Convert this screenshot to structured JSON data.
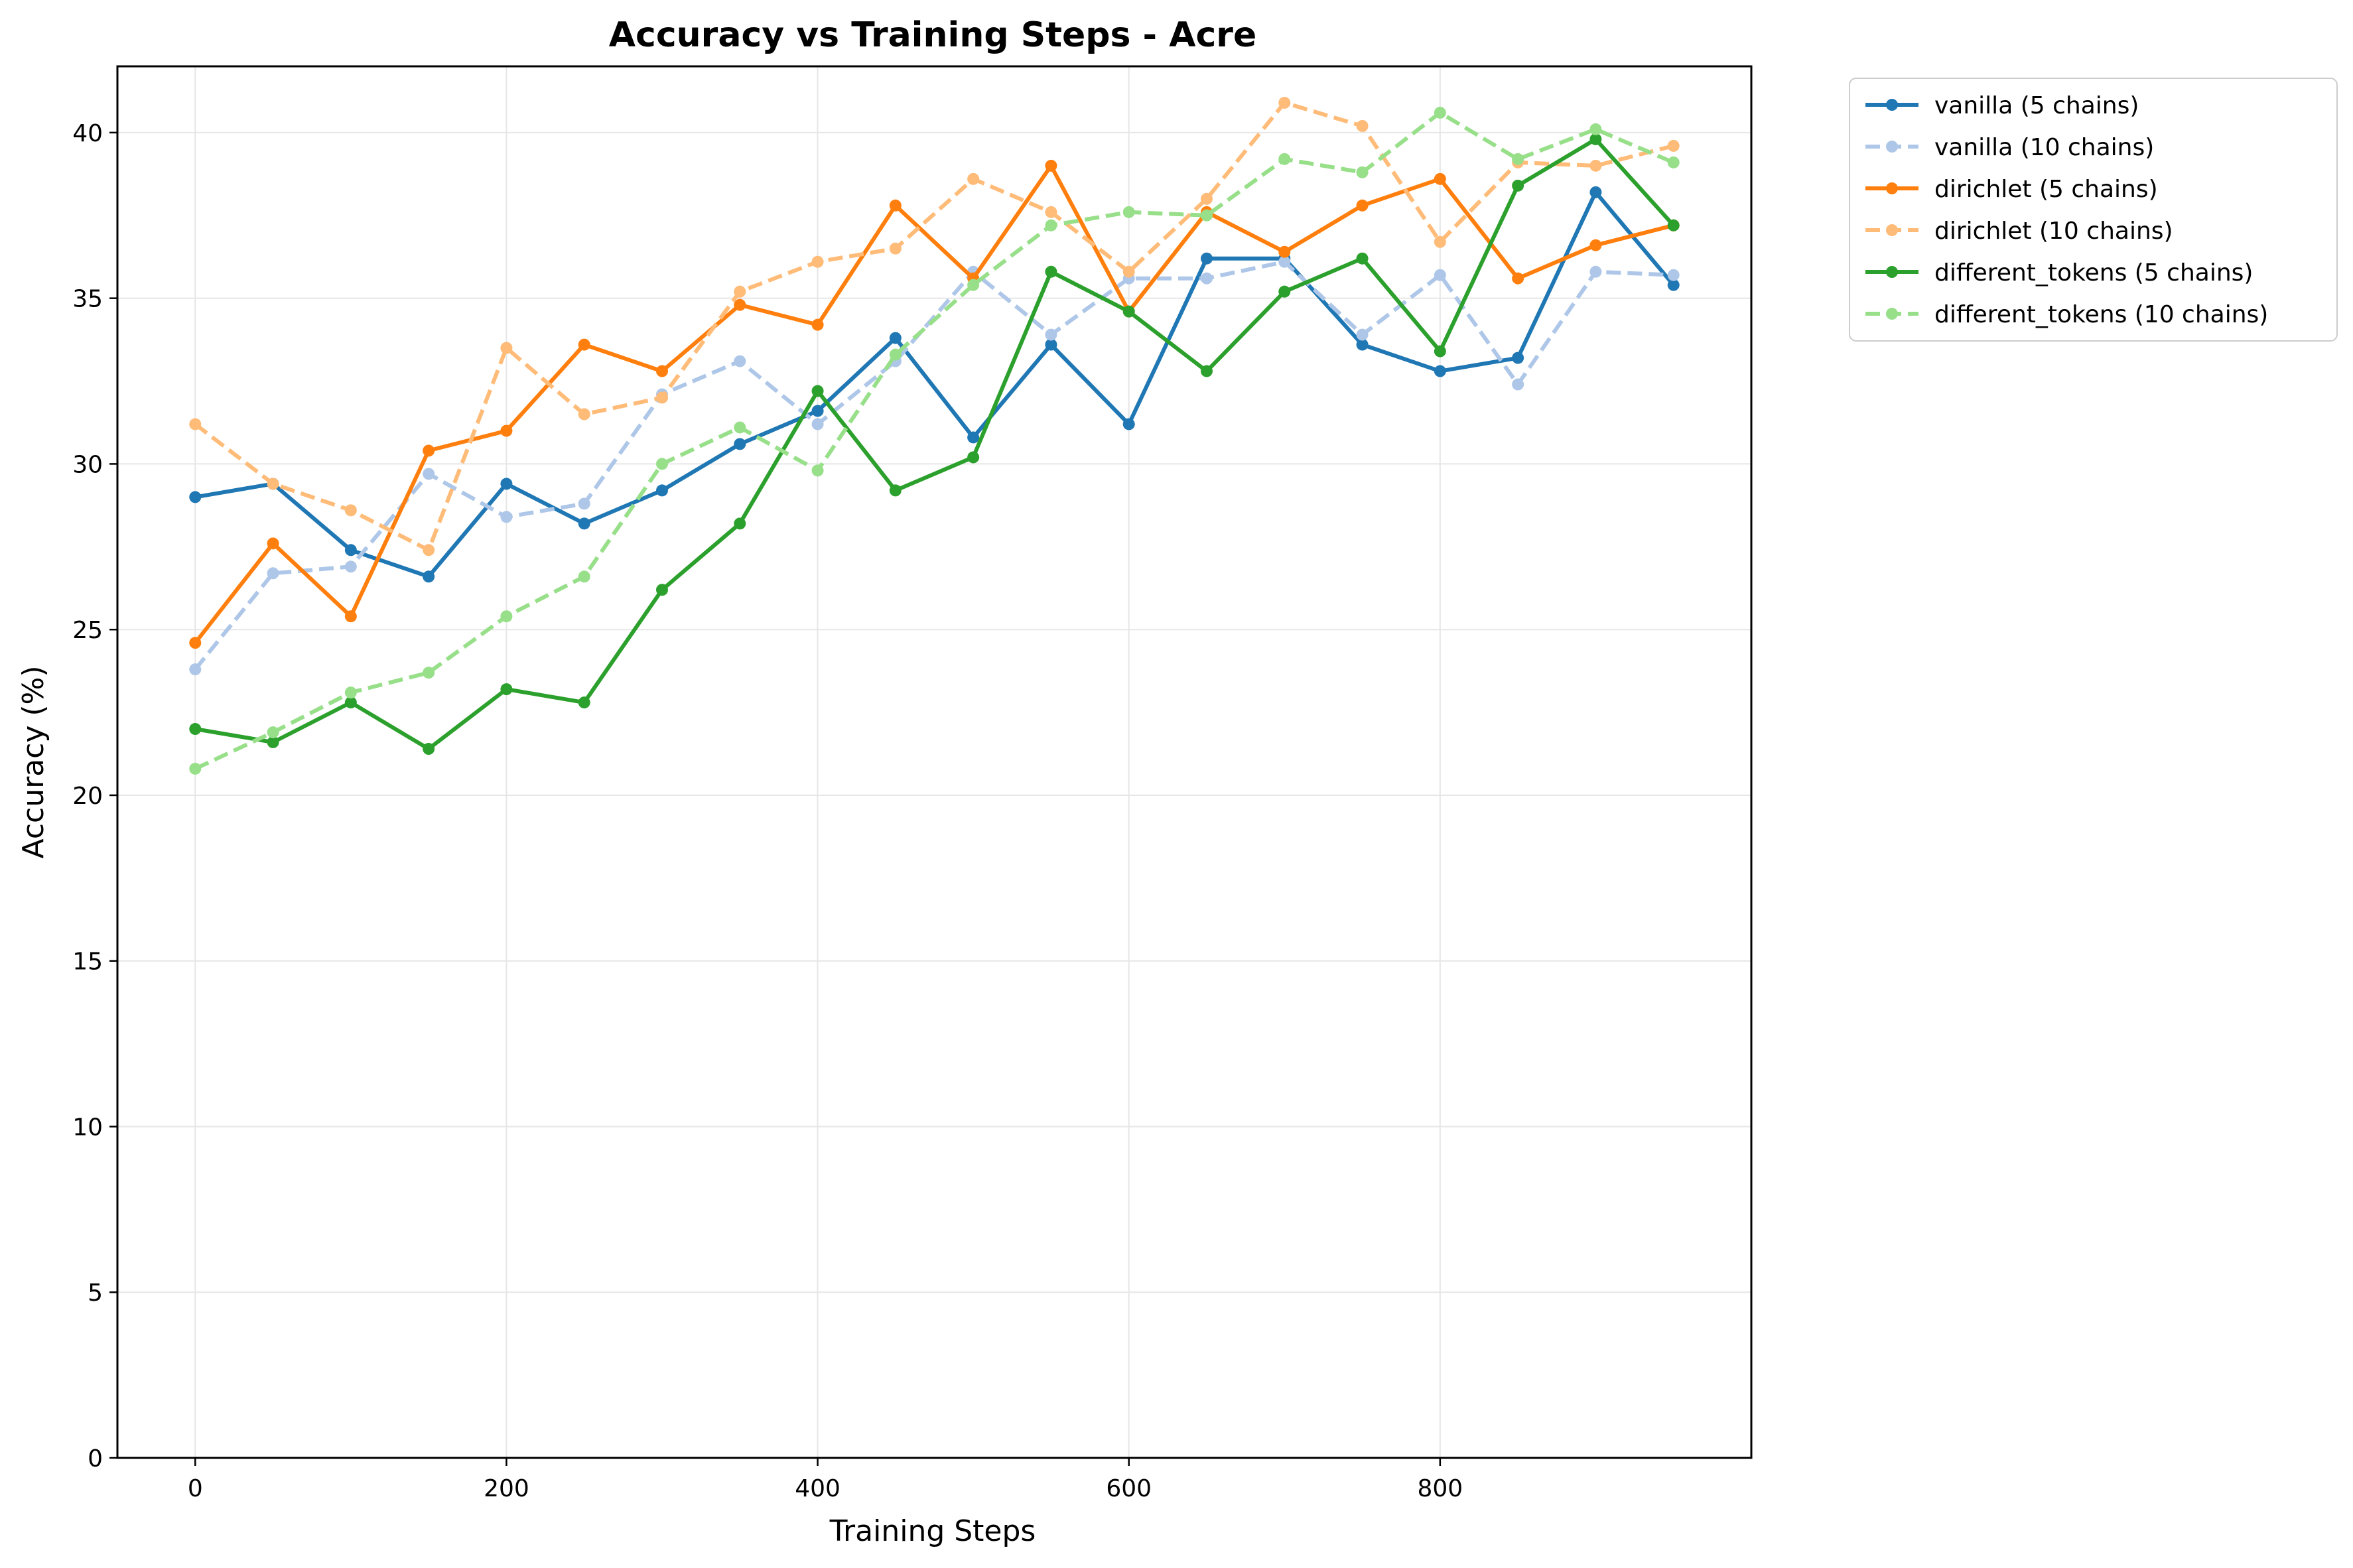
{
  "chart_data": {
    "type": "line",
    "title": "Accuracy vs Training Steps - Acre",
    "xlabel": "Training Steps",
    "ylabel": "Accuracy (%)",
    "xlim": [
      -50,
      1000
    ],
    "ylim": [
      0,
      42
    ],
    "x_ticks": [
      0,
      200,
      400,
      600,
      800
    ],
    "y_ticks": [
      0,
      5,
      10,
      15,
      20,
      25,
      30,
      35,
      40
    ],
    "grid": true,
    "legend_position": "outside-top-right",
    "x": [
      0,
      50,
      100,
      150,
      200,
      250,
      300,
      350,
      400,
      450,
      500,
      550,
      600,
      650,
      700,
      750,
      800,
      850,
      900,
      950
    ],
    "series": [
      {
        "name": "vanilla (5 chains)",
        "color": "#1f77b4",
        "dashed": false,
        "values": [
          29.0,
          29.4,
          27.4,
          26.6,
          29.4,
          28.2,
          29.2,
          30.6,
          31.6,
          33.8,
          30.8,
          33.6,
          31.2,
          36.2,
          36.2,
          33.6,
          32.8,
          33.2,
          38.2,
          35.4
        ]
      },
      {
        "name": "vanilla (10 chains)",
        "color": "#aec7e8",
        "dashed": true,
        "values": [
          23.8,
          26.7,
          26.9,
          29.7,
          28.4,
          28.8,
          32.1,
          33.1,
          31.2,
          33.1,
          35.8,
          33.9,
          35.6,
          35.6,
          36.1,
          33.9,
          35.7,
          32.4,
          35.8,
          35.7
        ]
      },
      {
        "name": "dirichlet (5 chains)",
        "color": "#ff7f0e",
        "dashed": false,
        "values": [
          24.6,
          27.6,
          25.4,
          30.4,
          31.0,
          33.6,
          32.8,
          34.8,
          34.2,
          37.8,
          35.6,
          39.0,
          34.6,
          37.6,
          36.4,
          37.8,
          38.6,
          35.6,
          36.6,
          37.2
        ]
      },
      {
        "name": "dirichlet (10 chains)",
        "color": "#ffbb78",
        "dashed": true,
        "values": [
          31.2,
          29.4,
          28.6,
          27.4,
          33.5,
          31.5,
          32.0,
          35.2,
          36.1,
          36.5,
          38.6,
          37.6,
          35.8,
          38.0,
          40.9,
          40.2,
          36.7,
          39.1,
          39.0,
          39.6
        ]
      },
      {
        "name": "different_tokens (5 chains)",
        "color": "#2ca02c",
        "dashed": false,
        "values": [
          22.0,
          21.6,
          22.8,
          21.4,
          23.2,
          22.8,
          26.2,
          28.2,
          32.2,
          29.2,
          30.2,
          35.8,
          34.6,
          32.8,
          35.2,
          36.2,
          33.4,
          38.4,
          39.8,
          37.2
        ]
      },
      {
        "name": "different_tokens (10 chains)",
        "color": "#98df8a",
        "dashed": true,
        "values": [
          20.8,
          21.9,
          23.1,
          23.7,
          25.4,
          26.6,
          30.0,
          31.1,
          29.8,
          33.3,
          35.4,
          37.2,
          37.6,
          37.5,
          39.2,
          38.8,
          40.6,
          39.2,
          40.1,
          39.1
        ]
      }
    ]
  }
}
